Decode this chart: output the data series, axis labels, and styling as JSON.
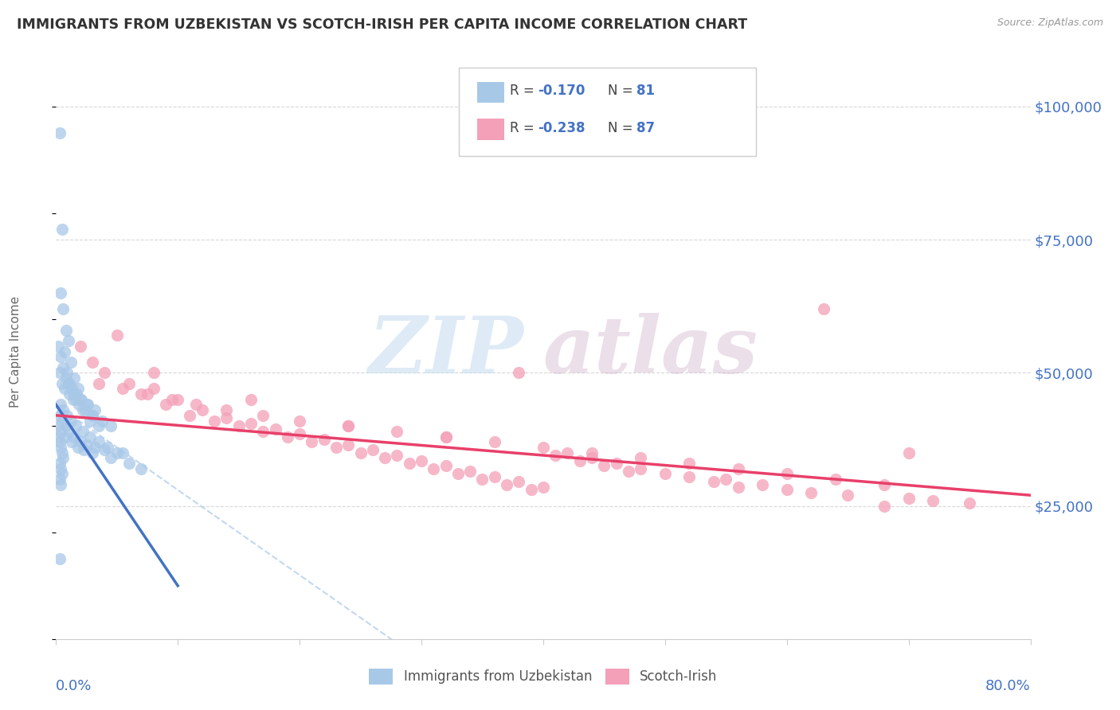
{
  "title": "IMMIGRANTS FROM UZBEKISTAN VS SCOTCH-IRISH PER CAPITA INCOME CORRELATION CHART",
  "source": "Source: ZipAtlas.com",
  "ylabel": "Per Capita Income",
  "yticks": [
    0,
    25000,
    50000,
    75000,
    100000
  ],
  "ytick_labels": [
    "",
    "$25,000",
    "$50,000",
    "$75,000",
    "$100,000"
  ],
  "xmin": 0.0,
  "xmax": 80.0,
  "ymin": 0,
  "ymax": 108000,
  "color_blue": "#a8c8e8",
  "color_pink": "#f4a0b8",
  "color_blue_line": "#4472c4",
  "color_blue_dash": "#a8c8e8",
  "color_pink_line": "#e8406a",
  "color_blue_text": "#4472c4",
  "watermark_color": "#c8dff0",
  "watermark_color2": "#d0b0c8",
  "grid_color": "#d8d8d8",
  "uzbekistan_x": [
    0.3,
    0.5,
    0.4,
    0.6,
    0.8,
    1.0,
    0.7,
    1.2,
    0.9,
    1.5,
    1.1,
    1.8,
    1.4,
    2.0,
    1.6,
    2.5,
    2.2,
    3.0,
    2.8,
    3.5,
    0.2,
    0.4,
    0.6,
    0.8,
    1.0,
    1.3,
    1.7,
    2.1,
    2.6,
    3.2,
    0.3,
    0.5,
    0.7,
    1.1,
    1.4,
    1.9,
    2.4,
    3.0,
    3.8,
    4.5,
    0.4,
    0.6,
    0.9,
    1.2,
    1.6,
    2.2,
    2.8,
    3.5,
    4.2,
    5.0,
    0.3,
    0.5,
    0.8,
    1.0,
    1.5,
    2.0,
    2.5,
    3.2,
    4.0,
    5.5,
    0.2,
    0.4,
    0.7,
    1.3,
    1.8,
    2.3,
    3.0,
    4.5,
    6.0,
    7.0,
    0.2,
    0.3,
    0.4,
    0.5,
    0.6,
    0.3,
    0.4,
    0.5,
    0.3,
    0.4,
    0.3
  ],
  "uzbekistan_y": [
    95000,
    77000,
    65000,
    62000,
    58000,
    56000,
    54000,
    52000,
    50000,
    49000,
    48000,
    47000,
    46000,
    45000,
    45000,
    44000,
    43000,
    42000,
    41000,
    40000,
    55000,
    53000,
    51000,
    49000,
    48000,
    47000,
    46000,
    45000,
    44000,
    43000,
    50000,
    48000,
    47000,
    46000,
    45000,
    44000,
    43000,
    42000,
    41000,
    40000,
    44000,
    43000,
    42000,
    41000,
    40000,
    39000,
    38000,
    37000,
    36000,
    35000,
    42000,
    41000,
    40000,
    39000,
    38000,
    37000,
    36500,
    36000,
    35500,
    35000,
    40000,
    39000,
    38000,
    37000,
    36000,
    35500,
    35000,
    34000,
    33000,
    32000,
    38000,
    37000,
    36000,
    35000,
    34000,
    33000,
    32000,
    31000,
    30000,
    29000,
    15000
  ],
  "scotchirish_x": [
    2.0,
    3.0,
    5.0,
    4.0,
    6.0,
    8.0,
    7.0,
    10.0,
    9.0,
    12.0,
    11.0,
    14.0,
    13.0,
    16.0,
    15.0,
    18.0,
    17.0,
    20.0,
    19.0,
    22.0,
    21.0,
    24.0,
    23.0,
    26.0,
    25.0,
    28.0,
    27.0,
    30.0,
    29.0,
    32.0,
    31.0,
    34.0,
    33.0,
    36.0,
    35.0,
    38.0,
    37.0,
    40.0,
    39.0,
    42.0,
    41.0,
    44.0,
    43.0,
    46.0,
    45.0,
    48.0,
    47.0,
    50.0,
    52.0,
    55.0,
    54.0,
    58.0,
    56.0,
    60.0,
    62.0,
    65.0,
    70.0,
    72.0,
    75.0,
    68.0,
    3.5,
    5.5,
    7.5,
    9.5,
    11.5,
    14.0,
    17.0,
    20.0,
    24.0,
    28.0,
    32.0,
    36.0,
    40.0,
    44.0,
    48.0,
    52.0,
    56.0,
    60.0,
    64.0,
    68.0,
    8.0,
    16.0,
    24.0,
    32.0,
    38.0,
    63.0,
    70.0
  ],
  "scotchirish_y": [
    55000,
    52000,
    57000,
    50000,
    48000,
    47000,
    46000,
    45000,
    44000,
    43000,
    42000,
    41500,
    41000,
    40500,
    40000,
    39500,
    39000,
    38500,
    38000,
    37500,
    37000,
    36500,
    36000,
    35500,
    35000,
    34500,
    34000,
    33500,
    33000,
    32500,
    32000,
    31500,
    31000,
    30500,
    30000,
    29500,
    29000,
    28500,
    28000,
    35000,
    34500,
    34000,
    33500,
    33000,
    32500,
    32000,
    31500,
    31000,
    30500,
    30000,
    29500,
    29000,
    28500,
    28000,
    27500,
    27000,
    26500,
    26000,
    25500,
    25000,
    48000,
    47000,
    46000,
    45000,
    44000,
    43000,
    42000,
    41000,
    40000,
    39000,
    38000,
    37000,
    36000,
    35000,
    34000,
    33000,
    32000,
    31000,
    30000,
    29000,
    50000,
    45000,
    40000,
    38000,
    50000,
    62000,
    35000
  ],
  "uzbek_trendline_x": [
    0.0,
    10.0
  ],
  "uzbek_trendline_y": [
    44000,
    10000
  ],
  "scotch_trendline_x": [
    0.0,
    80.0
  ],
  "scotch_trendline_y": [
    42000,
    27000
  ]
}
